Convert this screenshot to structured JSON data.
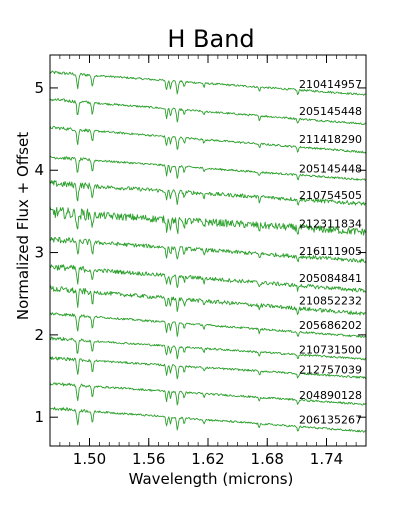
{
  "chart_data": {
    "type": "line",
    "title": "H Band",
    "xlabel": "Wavelength (microns)",
    "ylabel": "Normalized Flux + Offset",
    "xlim": [
      1.46,
      1.78
    ],
    "ylim": [
      0.65,
      5.4
    ],
    "x_ticks": [
      1.5,
      1.56,
      1.62,
      1.68,
      1.74
    ],
    "x_tick_labels": [
      "1.50",
      "1.56",
      "1.62",
      "1.68",
      "1.74"
    ],
    "y_ticks": [
      1,
      2,
      3,
      4,
      5
    ],
    "y_tick_labels": [
      "1",
      "2",
      "3",
      "4",
      "5"
    ],
    "grid": false,
    "line_color": "#2ca02c",
    "absorption_features_microns": [
      1.488,
      1.503,
      1.578,
      1.582,
      1.589,
      1.596,
      1.616,
      1.672,
      1.711
    ],
    "series": [
      {
        "name": "210414957",
        "offset": 5.05
      },
      {
        "name": "205145448",
        "offset": 4.72
      },
      {
        "name": "211418290",
        "offset": 4.38
      },
      {
        "name": "205145448",
        "offset": 4.02
      },
      {
        "name": "210754505",
        "offset": 3.7
      },
      {
        "name": "212311834",
        "offset": 3.35
      },
      {
        "name": "216111905",
        "offset": 3.02
      },
      {
        "name": "205084841",
        "offset": 2.69
      },
      {
        "name": "210852232",
        "offset": 2.42
      },
      {
        "name": "205686202",
        "offset": 2.12
      },
      {
        "name": "210731500",
        "offset": 1.82
      },
      {
        "name": "212757039",
        "offset": 1.58
      },
      {
        "name": "204890128",
        "offset": 1.27
      },
      {
        "name": "206135267",
        "offset": 0.97
      }
    ]
  }
}
